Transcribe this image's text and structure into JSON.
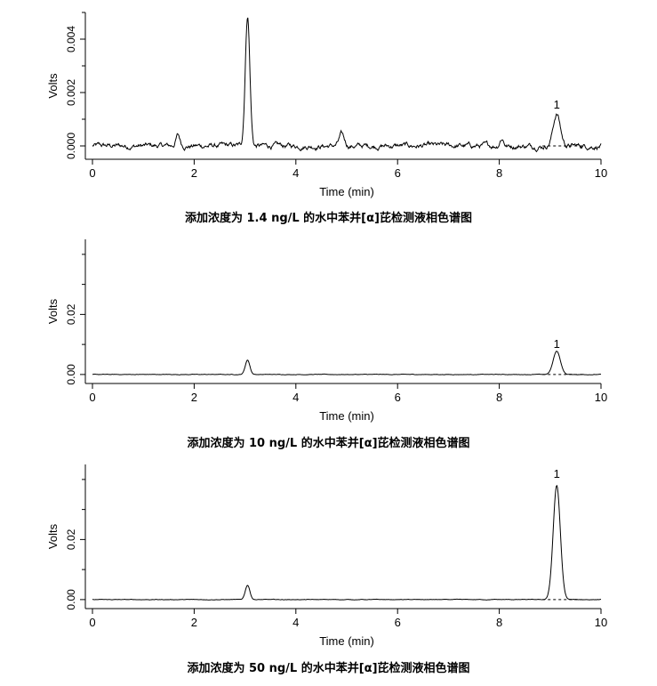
{
  "chart_data": [
    {
      "type": "line",
      "caption": "添加浓度为 1.4 ng/L 的水中苯并[α]芘检测液相色谱图",
      "xlabel": "Time (min)",
      "ylabel": "Volts",
      "xlim": [
        0,
        10
      ],
      "ylim": [
        -0.0005,
        0.005
      ],
      "xticks": [
        0,
        2,
        4,
        6,
        8,
        10
      ],
      "yticks": [
        0.0,
        0.002,
        0.004
      ],
      "ytick_labels": [
        "0.000",
        "0.002",
        "0.004"
      ],
      "baseline": 0.0,
      "noise": 0.00012,
      "series": [
        {
          "peaks": [
            {
              "x": 1.68,
              "height": 0.0004,
              "width": 0.04
            },
            {
              "x": 3.05,
              "height": 0.0049,
              "width": 0.045
            },
            {
              "x": 4.9,
              "height": 0.0004,
              "width": 0.05
            },
            {
              "x": 8.05,
              "height": 0.0003,
              "width": 0.04
            },
            {
              "x": 9.13,
              "height": 0.0012,
              "width": 0.07
            }
          ]
        }
      ],
      "annotations": [
        {
          "text": "1",
          "x": 9.13,
          "y": 0.0014
        }
      ],
      "peak_baseline": {
        "x_start": 8.85,
        "x_end": 9.65,
        "style": "dashed"
      }
    },
    {
      "type": "line",
      "caption": "添加浓度为 10 ng/L 的水中苯并[α]芘检测液相色谱图",
      "xlabel": "Time (min)",
      "ylabel": "Volts",
      "xlim": [
        0,
        10
      ],
      "ylim": [
        -0.003,
        0.045
      ],
      "xticks": [
        0,
        2,
        4,
        6,
        8,
        10
      ],
      "yticks": [
        0.0,
        0.02
      ],
      "ytick_labels": [
        "0.00",
        "0.02"
      ],
      "baseline": 0.0,
      "noise": 0.0001,
      "series": [
        {
          "peaks": [
            {
              "x": 3.05,
              "height": 0.0048,
              "width": 0.045
            },
            {
              "x": 9.13,
              "height": 0.0078,
              "width": 0.07
            }
          ]
        }
      ],
      "annotations": [
        {
          "text": "1",
          "x": 9.13,
          "y": 0.0088
        }
      ],
      "peak_baseline": {
        "x_start": 8.85,
        "x_end": 9.65,
        "style": "dashed"
      }
    },
    {
      "type": "line",
      "caption": "添加浓度为 50 ng/L 的水中苯并[α]芘检测液相色谱图",
      "xlabel": "Time (min)",
      "ylabel": "Volts",
      "xlim": [
        0,
        10
      ],
      "ylim": [
        -0.003,
        0.045
      ],
      "xticks": [
        0,
        2,
        4,
        6,
        8,
        10
      ],
      "yticks": [
        0.0,
        0.02
      ],
      "ytick_labels": [
        "0.00",
        "0.02"
      ],
      "baseline": 0.0,
      "noise": 0.0001,
      "series": [
        {
          "peaks": [
            {
              "x": 3.05,
              "height": 0.0048,
              "width": 0.045
            },
            {
              "x": 9.13,
              "height": 0.038,
              "width": 0.07
            }
          ]
        }
      ],
      "annotations": [
        {
          "text": "1",
          "x": 9.13,
          "y": 0.0405
        }
      ],
      "peak_baseline": {
        "x_start": 8.85,
        "x_end": 9.65,
        "style": "dashed"
      }
    }
  ]
}
